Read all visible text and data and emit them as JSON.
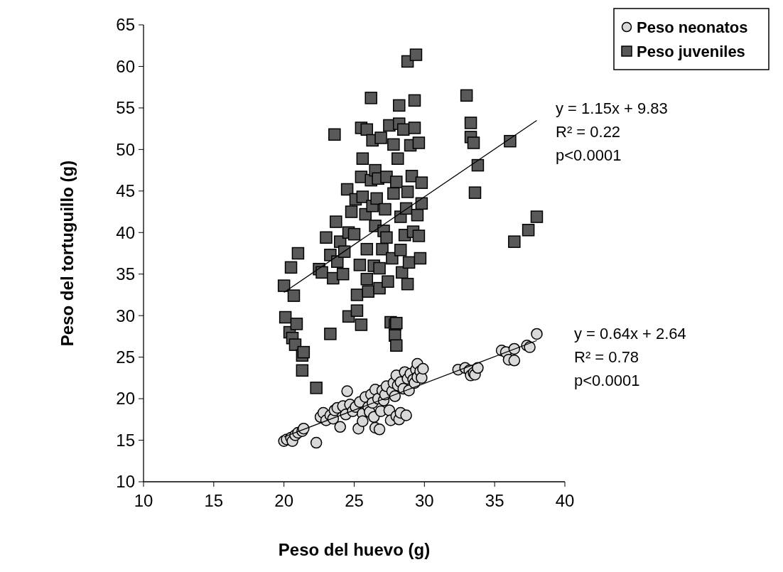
{
  "chart_data": {
    "type": "scatter",
    "xlabel": "Peso del huevo (g)",
    "ylabel": "Peso del tortuguillo (g)",
    "xlim": [
      10,
      40
    ],
    "xticks": [
      10,
      15,
      20,
      25,
      30,
      35,
      40
    ],
    "ylim": [
      10,
      65
    ],
    "yticks": [
      10,
      15,
      20,
      25,
      30,
      35,
      40,
      45,
      50,
      55,
      60,
      65
    ],
    "grid": false,
    "legend": "top right",
    "series": [
      {
        "name": "Peso neonatos",
        "type": "scatter",
        "marker": "circle",
        "color": "#d9d9d9",
        "x": [
          20.0,
          20.2,
          20.5,
          20.6,
          20.8,
          21.0,
          21.3,
          21.4,
          22.3,
          22.6,
          22.8,
          23.0,
          23.3,
          23.5,
          23.6,
          23.8,
          24.0,
          24.2,
          24.4,
          24.5,
          24.7,
          24.9,
          25.1,
          25.3,
          25.4,
          25.6,
          25.6,
          25.8,
          26.0,
          26.1,
          26.2,
          26.3,
          26.4,
          26.5,
          26.5,
          26.7,
          26.8,
          26.9,
          27.0,
          27.1,
          27.2,
          27.3,
          27.5,
          27.6,
          27.7,
          27.8,
          27.9,
          28.0,
          28.0,
          28.1,
          28.2,
          28.3,
          28.3,
          28.5,
          28.6,
          28.7,
          28.8,
          28.9,
          29.0,
          29.2,
          29.3,
          29.4,
          29.5,
          29.5,
          29.7,
          29.8,
          29.9,
          32.4,
          32.9,
          33.2,
          33.3,
          33.5,
          33.6,
          33.8,
          35.5,
          35.8,
          36.0,
          36.4,
          36.4,
          37.3,
          37.5,
          38.0
        ],
        "values": [
          14.9,
          15.1,
          15.3,
          14.9,
          15.6,
          15.9,
          16.1,
          16.4,
          14.7,
          17.8,
          18.3,
          17.4,
          18.0,
          17.6,
          18.6,
          18.9,
          16.6,
          19.1,
          18.1,
          20.9,
          19.3,
          18.5,
          19.0,
          16.4,
          19.6,
          18.2,
          17.3,
          20.2,
          19.0,
          18.4,
          20.5,
          19.5,
          17.8,
          16.5,
          21.1,
          20.0,
          16.3,
          18.5,
          21.0,
          19.8,
          20.5,
          21.5,
          18.6,
          17.4,
          20.9,
          21.9,
          20.3,
          22.8,
          17.9,
          21.6,
          17.5,
          18.3,
          22.0,
          21.2,
          23.2,
          18.0,
          22.4,
          21.0,
          23.0,
          22.3,
          21.9,
          23.5,
          22.6,
          24.2,
          23.3,
          22.5,
          23.6,
          23.5,
          23.7,
          23.4,
          22.8,
          23.1,
          22.9,
          23.7,
          25.8,
          25.6,
          24.7,
          26.0,
          24.6,
          26.4,
          26.2,
          27.8
        ]
      },
      {
        "name": "Peso juveniles",
        "type": "scatter",
        "marker": "square",
        "color": "#595959",
        "x": [
          20.0,
          20.1,
          20.5,
          20.4,
          20.6,
          20.7,
          20.8,
          20.9,
          21.0,
          21.3,
          21.4,
          21.3,
          22.3,
          22.5,
          22.7,
          23.0,
          23.3,
          23.6,
          23.3,
          23.5,
          23.7,
          24.0,
          23.8,
          24.2,
          24.3,
          24.5,
          24.6,
          24.6,
          24.8,
          25.0,
          25.1,
          25.2,
          25.2,
          25.4,
          25.5,
          25.5,
          25.6,
          25.6,
          25.5,
          25.8,
          25.9,
          25.9,
          25.9,
          26.0,
          26.2,
          26.2,
          26.3,
          26.3,
          26.5,
          26.5,
          26.4,
          26.6,
          26.7,
          26.8,
          26.8,
          26.9,
          27.0,
          27.1,
          27.2,
          27.3,
          27.3,
          27.4,
          27.5,
          27.6,
          27.7,
          27.8,
          27.8,
          27.9,
          27.9,
          28.0,
          28.0,
          28.0,
          28.1,
          28.2,
          28.2,
          28.3,
          28.3,
          28.4,
          28.5,
          28.6,
          28.7,
          28.8,
          28.8,
          28.9,
          28.8,
          29.0,
          29.1,
          29.2,
          29.3,
          29.3,
          29.4,
          29.5,
          29.6,
          29.6,
          29.7,
          29.8,
          29.8,
          33.0,
          33.3,
          33.3,
          33.5,
          33.6,
          33.8,
          36.1,
          36.4,
          37.4,
          38.0
        ],
        "values": [
          33.6,
          29.8,
          35.8,
          28.0,
          27.3,
          32.4,
          26.5,
          29.0,
          37.5,
          25.2,
          25.6,
          23.4,
          21.3,
          35.6,
          35.2,
          39.4,
          27.8,
          51.8,
          37.3,
          34.5,
          41.3,
          38.9,
          36.5,
          35.0,
          37.7,
          45.2,
          40.0,
          29.9,
          42.5,
          39.8,
          44.0,
          32.5,
          30.6,
          36.1,
          52.6,
          46.7,
          48.9,
          44.3,
          28.9,
          42.2,
          38.0,
          34.4,
          52.4,
          32.9,
          46.3,
          56.2,
          51.1,
          43.2,
          47.5,
          40.8,
          36.0,
          44.1,
          46.5,
          35.7,
          33.3,
          51.4,
          38.0,
          40.2,
          42.8,
          46.7,
          39.4,
          34.1,
          52.9,
          29.2,
          36.9,
          50.6,
          44.7,
          28.9,
          27.6,
          26.4,
          29.1,
          46.1,
          48.9,
          53.1,
          55.3,
          41.9,
          37.9,
          35.2,
          52.4,
          39.7,
          42.9,
          60.6,
          44.9,
          36.4,
          33.8,
          50.5,
          46.8,
          40.1,
          52.6,
          55.9,
          61.4,
          42.1,
          39.6,
          50.8,
          36.9,
          46.0,
          43.5,
          56.5,
          53.2,
          51.5,
          50.8,
          44.8,
          48.1,
          51.0,
          38.9,
          40.3,
          41.9
        ]
      },
      {
        "type": "line",
        "color": "#000000",
        "x": [
          20,
          38
        ],
        "values": [
          15.4,
          27.0
        ]
      },
      {
        "type": "line",
        "color": "#000000",
        "x": [
          20,
          38
        ],
        "values": [
          32.8,
          53.5
        ]
      }
    ],
    "annotations": [
      "y = 1.15x + 9.83\nR² = 0.22\np<0.0001",
      "y = 0.64x + 2.64\nR² = 0.78\np<0.0001"
    ]
  }
}
